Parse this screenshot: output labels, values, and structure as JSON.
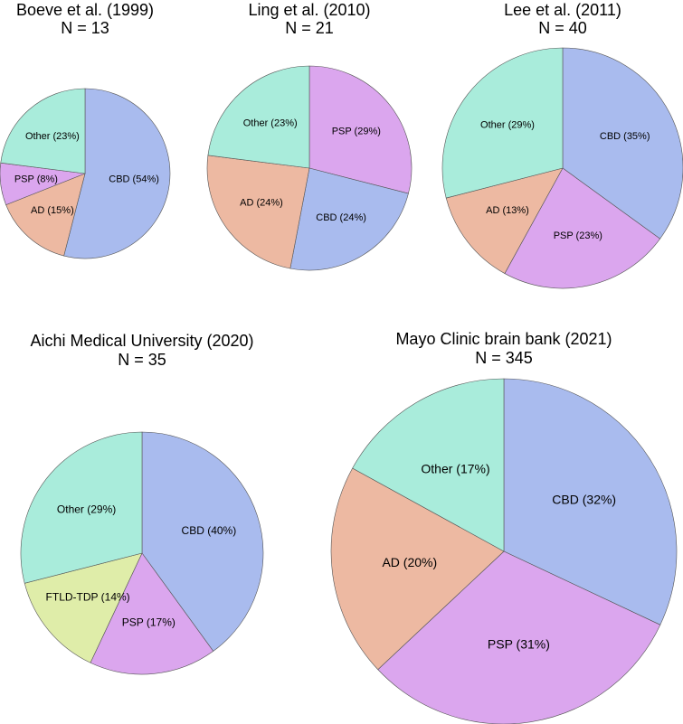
{
  "chart_data": [
    {
      "type": "pie",
      "title": "Boeve et al. (1999)",
      "subtitle": "N = 13",
      "slices": [
        {
          "name": "CBD",
          "value": 54,
          "label": "CBD (54%)",
          "color": "#a9bbee"
        },
        {
          "name": "AD",
          "value": 15,
          "label": "AD (15%)",
          "color": "#edb9a2"
        },
        {
          "name": "PSP",
          "value": 8,
          "label": "PSP (8%)",
          "color": "#dba6ee"
        },
        {
          "name": "Other",
          "value": 23,
          "label": "Other (23%)",
          "color": "#a9ecdb"
        }
      ]
    },
    {
      "type": "pie",
      "title": "Ling et al. (2010)",
      "subtitle": "N = 21",
      "slices": [
        {
          "name": "PSP",
          "value": 29,
          "label": "PSP (29%)",
          "color": "#dba6ee"
        },
        {
          "name": "CBD",
          "value": 24,
          "label": "CBD (24%)",
          "color": "#a9bbee"
        },
        {
          "name": "AD",
          "value": 24,
          "label": "AD (24%)",
          "color": "#edb9a2"
        },
        {
          "name": "Other",
          "value": 23,
          "label": "Other (23%)",
          "color": "#a9ecdb"
        }
      ]
    },
    {
      "type": "pie",
      "title": "Lee et al. (2011)",
      "subtitle": "N = 40",
      "slices": [
        {
          "name": "CBD",
          "value": 35,
          "label": "CBD (35%)",
          "color": "#a9bbee"
        },
        {
          "name": "PSP",
          "value": 23,
          "label": "PSP (23%)",
          "color": "#dba6ee"
        },
        {
          "name": "AD",
          "value": 13,
          "label": "AD (13%)",
          "color": "#edb9a2"
        },
        {
          "name": "Other",
          "value": 29,
          "label": "Other (29%)",
          "color": "#a9ecdb"
        }
      ]
    },
    {
      "type": "pie",
      "title": "Aichi Medical University (2020)",
      "subtitle": "N = 35",
      "slices": [
        {
          "name": "CBD",
          "value": 40,
          "label": "CBD (40%)",
          "color": "#a9bbee"
        },
        {
          "name": "PSP",
          "value": 17,
          "label": "PSP (17%)",
          "color": "#dba6ee"
        },
        {
          "name": "FTLD-TDP",
          "value": 14,
          "label": "FTLD-TDP (14%)",
          "color": "#dfeda9"
        },
        {
          "name": "Other",
          "value": 29,
          "label": "Other (29%)",
          "color": "#a9ecdb"
        }
      ]
    },
    {
      "type": "pie",
      "title": "Mayo Clinic brain bank (2021)",
      "subtitle": "N = 345",
      "slices": [
        {
          "name": "CBD",
          "value": 32,
          "label": "CBD (32%)",
          "color": "#a9bbee"
        },
        {
          "name": "PSP",
          "value": 31,
          "label": "PSP (31%)",
          "color": "#dba6ee"
        },
        {
          "name": "AD",
          "value": 20,
          "label": "AD (20%)",
          "color": "#edb9a2"
        },
        {
          "name": "Other",
          "value": 17,
          "label": "Other (17%)",
          "color": "#a9ecdb"
        }
      ]
    }
  ]
}
